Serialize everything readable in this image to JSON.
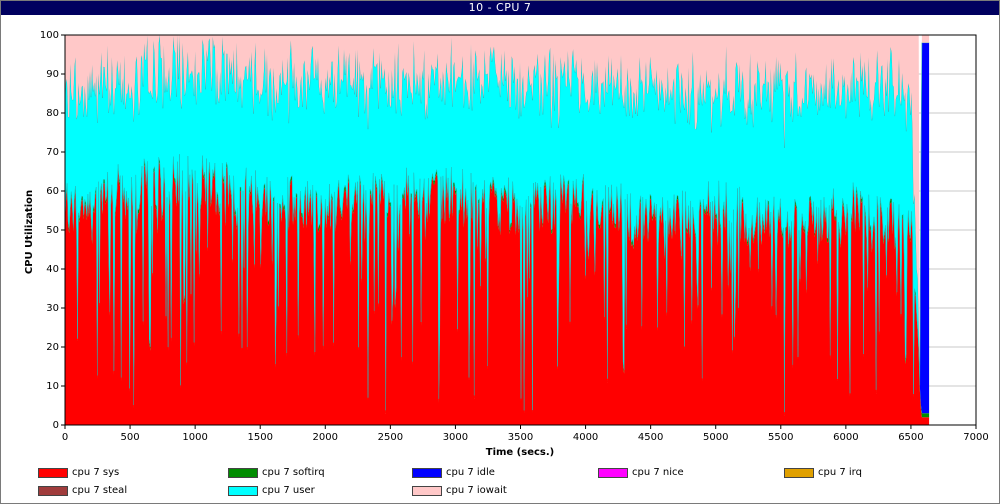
{
  "window": {
    "title": "10 - CPU 7"
  },
  "chart_data": {
    "type": "area",
    "stacked": true,
    "xlabel": "Time (secs.)",
    "ylabel": "CPU Utilization",
    "xlim": [
      0,
      7000
    ],
    "ylim": [
      0,
      100
    ],
    "x_ticks": [
      0,
      500,
      1000,
      1500,
      2000,
      2500,
      3000,
      3500,
      4000,
      4500,
      5000,
      5500,
      6000,
      6500,
      7000
    ],
    "y_ticks": [
      0,
      10,
      20,
      30,
      40,
      50,
      60,
      70,
      80,
      90,
      100
    ],
    "grid": "horizontal",
    "legend_position": "bottom",
    "data_extent_x": [
      0,
      6640
    ],
    "series": [
      {
        "name": "cpu 7 sys",
        "color": "#ff0000",
        "x": [
          0,
          500,
          1000,
          1500,
          2000,
          2500,
          3000,
          3500,
          4000,
          4500,
          5000,
          5500,
          6000,
          6500,
          6580,
          6640
        ],
        "values": [
          55,
          60,
          62,
          58,
          55,
          60,
          58,
          55,
          57,
          52,
          55,
          50,
          55,
          50,
          2,
          2
        ]
      },
      {
        "name": "cpu 7 softirq",
        "color": "#008c00",
        "x": [
          0,
          6640
        ],
        "values": [
          1,
          1
        ]
      },
      {
        "name": "cpu 7 idle",
        "color": "#0000ff",
        "x": [
          0,
          6570,
          6580,
          6640
        ],
        "values": [
          0,
          0,
          95,
          95
        ]
      },
      {
        "name": "cpu 7 nice",
        "color": "#ff00ff",
        "x": [
          0,
          6640
        ],
        "values": [
          0,
          0
        ]
      },
      {
        "name": "cpu 7 irq",
        "color": "#e0a000",
        "x": [
          0,
          6640
        ],
        "values": [
          0,
          0
        ]
      },
      {
        "name": "cpu 7 steal",
        "color": "#a03c3c",
        "x": [
          0,
          6640
        ],
        "values": [
          0,
          0
        ]
      },
      {
        "name": "cpu 7 user",
        "color": "#00ffff",
        "x": [
          0,
          500,
          1000,
          1500,
          2000,
          2500,
          3000,
          3500,
          4000,
          4500,
          5000,
          5500,
          6000,
          6500,
          6580,
          6640
        ],
        "values": [
          30,
          28,
          30,
          30,
          32,
          28,
          30,
          32,
          30,
          33,
          30,
          35,
          32,
          35,
          0,
          0
        ]
      },
      {
        "name": "cpu 7 iowait",
        "color": "#ffc8c8",
        "x": [
          0,
          500,
          1000,
          1500,
          2000,
          2500,
          3000,
          3500,
          4000,
          4500,
          5000,
          5500,
          6000,
          6500,
          6580,
          6640
        ],
        "values": [
          14,
          11,
          7,
          11,
          12,
          11,
          11,
          12,
          12,
          14,
          14,
          14,
          12,
          14,
          3,
          3
        ]
      }
    ]
  }
}
